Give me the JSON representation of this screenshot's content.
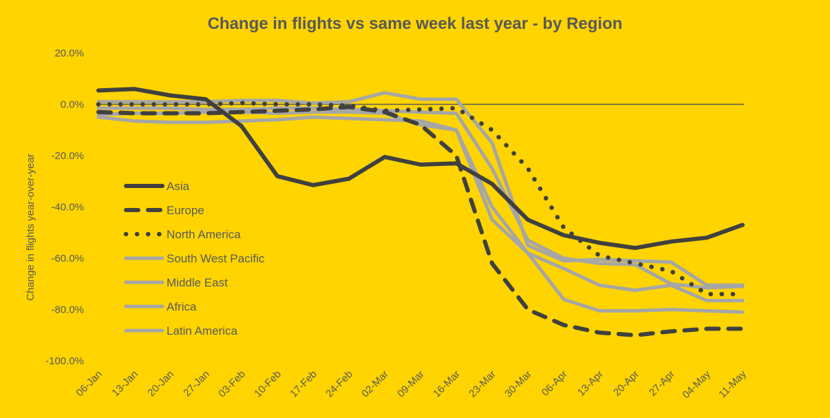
{
  "chart_data": {
    "type": "line",
    "title": "Change in flights vs same week last year - by Region",
    "xlabel": "",
    "ylabel": "Change in flights year-over-year",
    "ylim": [
      -100,
      20
    ],
    "yticks": [
      20,
      0,
      -20,
      -40,
      -60,
      -80,
      -100
    ],
    "ytick_labels": [
      "20.0%",
      "0.0%",
      "-20.0%",
      "-40.0%",
      "-60.0%",
      "-80.0%",
      "-100.0%"
    ],
    "grid": false,
    "zero_line": true,
    "legend_position": "left-center",
    "categories": [
      "06-Jan",
      "13-Jan",
      "20-Jan",
      "27-Jan",
      "03-Feb",
      "10-Feb",
      "17-Feb",
      "24-Feb",
      "02-Mar",
      "09-Mar",
      "16-Mar",
      "23-Mar",
      "30-Mar",
      "06-Apr",
      "13-Apr",
      "20-Apr",
      "27-Apr",
      "04-May",
      "11-May"
    ],
    "series": [
      {
        "name": "Asia",
        "style": "solid",
        "color": "#404040",
        "values": [
          5.4,
          6.0,
          3.5,
          2.0,
          -8.5,
          -28.0,
          -31.5,
          -29.0,
          -20.5,
          -23.5,
          -23.0,
          -31.0,
          -45.0,
          -51.0,
          -54.0,
          -56.0,
          -53.5,
          -52.0,
          -47.0
        ]
      },
      {
        "name": "Europe",
        "style": "dashed",
        "color": "#404040",
        "values": [
          -3.0,
          -3.5,
          -3.5,
          -3.5,
          -3.0,
          -2.5,
          -2.0,
          -1.0,
          -3.0,
          -8.0,
          -20.0,
          -62.0,
          -80.0,
          -86.0,
          -89.0,
          -90.0,
          -88.5,
          -87.5,
          -87.5
        ]
      },
      {
        "name": "North America",
        "style": "dotted",
        "color": "#404040",
        "values": [
          0.0,
          0.0,
          0.0,
          0.0,
          0.5,
          0.0,
          0.0,
          -0.5,
          -2.5,
          -2.0,
          -1.5,
          -10.0,
          -25.0,
          -48.0,
          -59.0,
          -62.0,
          -65.0,
          -74.0,
          -74.0
        ]
      },
      {
        "name": "South West Pacific",
        "style": "solid",
        "color": "#A6A6A6",
        "values": [
          1.0,
          1.0,
          1.0,
          1.0,
          1.5,
          1.5,
          0.5,
          1.0,
          4.5,
          2.0,
          2.0,
          -15.0,
          -55.0,
          -61.0,
          -60.5,
          -61.0,
          -61.5,
          -70.5,
          -70.5
        ]
      },
      {
        "name": "Middle East",
        "style": "solid",
        "color": "#A6A6A6",
        "values": [
          -1.5,
          -1.5,
          -1.5,
          -2.0,
          -2.0,
          -1.5,
          -1.5,
          -2.0,
          -2.5,
          -3.0,
          -3.5,
          -25.0,
          -53.0,
          -60.0,
          -62.0,
          -62.5,
          -70.0,
          -71.5,
          -71.0
        ]
      },
      {
        "name": "Africa",
        "style": "solid",
        "color": "#A6A6A6",
        "values": [
          -4.0,
          -3.5,
          -3.5,
          -3.0,
          -3.0,
          -3.5,
          -3.0,
          -3.0,
          -3.5,
          -8.0,
          -10.0,
          -40.0,
          -58.0,
          -76.0,
          -80.5,
          -80.5,
          -80.0,
          -80.5,
          -81.0
        ]
      },
      {
        "name": "Latin America",
        "style": "solid",
        "color": "#A6A6A6",
        "values": [
          -5.0,
          -6.5,
          -7.0,
          -7.0,
          -6.5,
          -6.0,
          -5.0,
          -5.5,
          -6.0,
          -6.5,
          -10.0,
          -45.0,
          -58.0,
          -64.0,
          -70.5,
          -72.5,
          -70.5,
          -76.5,
          -76.5
        ]
      }
    ]
  },
  "colors": {
    "background": "#FFD400",
    "text": "#595959",
    "dark_series": "#404040",
    "light_series": "#A6A6A6",
    "zero_line": "#595959"
  }
}
